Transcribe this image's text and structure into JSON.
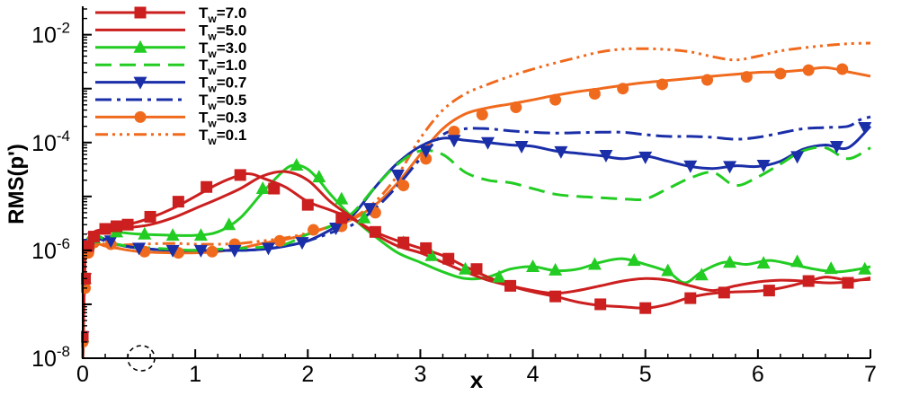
{
  "chart_data": {
    "type": "line",
    "title": "",
    "xlabel": "x",
    "ylabel": "RMS(p')",
    "xlim": [
      0,
      7
    ],
    "ylim": [
      1e-08,
      0.03
    ],
    "yscale": "log",
    "grid": false,
    "legend_position": "top-left",
    "x_ticks": [
      "0",
      "1",
      "2",
      "3",
      "4",
      "5",
      "6",
      "7"
    ],
    "y_ticks": [
      {
        "base": "10",
        "exp": "-8",
        "value": 1e-08
      },
      {
        "base": "10",
        "exp": "-6",
        "value": 1e-06
      },
      {
        "base": "10",
        "exp": "-4",
        "value": 0.0001
      },
      {
        "base": "10",
        "exp": "-2",
        "value": 0.01
      }
    ],
    "series": [
      {
        "name": "Tw=7.0",
        "label_main": "T",
        "label_sub": "w",
        "label_value": "=7.0",
        "color": "#cc1f1f",
        "dash": "",
        "marker": "square",
        "x": [
          0,
          0.01,
          0.02,
          0.03,
          0.05,
          0.08,
          0.12,
          0.2,
          0.3,
          0.45,
          0.6,
          0.8,
          1.0,
          1.2,
          1.4,
          1.5,
          1.6,
          1.8,
          2.0,
          2.2,
          2.4,
          2.6,
          2.8,
          3.0,
          3.2,
          3.4,
          3.6,
          3.8,
          4.0,
          4.2,
          4.4,
          4.6,
          4.8,
          5.0,
          5.2,
          5.4,
          5.6,
          5.8,
          6.0,
          6.2,
          6.4,
          6.6,
          6.8,
          7.0
        ],
        "y": [
          1e-08,
          1e-07,
          6e-07,
          1.3e-06,
          1.6e-06,
          2e-06,
          2.3e-06,
          2.5e-06,
          2.9e-06,
          3.2e-06,
          4e-06,
          6e-06,
          1e-05,
          1.7e-05,
          2.5e-05,
          2.6e-05,
          2.2e-05,
          1.5e-05,
          8e-06,
          5.6e-06,
          3.8e-06,
          2.2e-06,
          1.5e-06,
          1.1e-06,
          8e-07,
          5e-07,
          3.2e-07,
          2.2e-07,
          1.7e-07,
          1.4e-07,
          1.1e-07,
          9.5e-08,
          9e-08,
          8.5e-08,
          1e-07,
          1.35e-07,
          1.6e-07,
          1.7e-07,
          1.75e-07,
          2e-07,
          2.5e-07,
          3.2e-07,
          2.8e-07,
          2.9e-07
        ],
        "marker_x": [
          0,
          0.02,
          0.05,
          0.1,
          0.2,
          0.3,
          0.4,
          0.6,
          0.85,
          1.1,
          1.4,
          1.7,
          2.0,
          2.3,
          2.6,
          2.85,
          3.05,
          3.25,
          3.5,
          3.8,
          4.2,
          4.6,
          5.0,
          5.4,
          5.7,
          6.1,
          6.45,
          6.8
        ],
        "marker_y": [
          2.5e-08,
          3e-07,
          1.2e-06,
          1.8e-06,
          2.5e-06,
          2.8e-06,
          3e-06,
          4.2e-06,
          8e-06,
          1.5e-05,
          2.5e-05,
          1.4e-05,
          7e-06,
          4e-06,
          2.2e-06,
          1.4e-06,
          1.1e-06,
          7e-07,
          4.5e-07,
          2.2e-07,
          1.4e-07,
          1e-07,
          8.5e-08,
          1.3e-07,
          1.65e-07,
          1.8e-07,
          2.7e-07,
          2.5e-07
        ]
      },
      {
        "name": "Tw=5.0",
        "label_main": "T",
        "label_sub": "w",
        "label_value": "=5.0",
        "color": "#cc1f1f",
        "dash": "",
        "marker": "none",
        "x": [
          0,
          0.01,
          0.02,
          0.03,
          0.05,
          0.08,
          0.12,
          0.2,
          0.3,
          0.45,
          0.6,
          0.8,
          1.0,
          1.2,
          1.4,
          1.6,
          1.8,
          2.0,
          2.2,
          2.4,
          2.6,
          2.8,
          3.0,
          3.2,
          3.4,
          3.6,
          3.8,
          4.0,
          4.2,
          4.4,
          4.6,
          4.8,
          5.0,
          5.2,
          5.4,
          5.6,
          5.8,
          6.0,
          6.2,
          6.4,
          6.6,
          6.8,
          7.0
        ],
        "y": [
          1e-08,
          1e-07,
          6e-07,
          1.3e-06,
          1.6e-06,
          2e-06,
          2.2e-06,
          2.4e-06,
          2.5e-06,
          2.7e-06,
          3e-06,
          4e-06,
          6e-06,
          9e-06,
          1.4e-05,
          2.4e-05,
          2.9e-05,
          2e-05,
          8e-06,
          4e-06,
          2e-06,
          1.2e-06,
          9e-07,
          6e-07,
          4e-07,
          2.8e-07,
          2.2e-07,
          1.8e-07,
          1.6e-07,
          1.8e-07,
          2.2e-07,
          2.7e-07,
          3e-07,
          2.8e-07,
          2.2e-07,
          1.8e-07,
          2.2e-07,
          2.6e-07,
          2.8e-07,
          2.7e-07,
          2.5e-07,
          2.6e-07,
          3.1e-07
        ]
      },
      {
        "name": "Tw=3.0",
        "label_main": "T",
        "label_sub": "w",
        "label_value": "=3.0",
        "color": "#22cc22",
        "dash": "",
        "marker": "triangle-up",
        "x": [
          0,
          0.01,
          0.02,
          0.03,
          0.05,
          0.08,
          0.12,
          0.2,
          0.3,
          0.5,
          0.8,
          1.0,
          1.2,
          1.4,
          1.6,
          1.8,
          1.9,
          2.0,
          2.1,
          2.2,
          2.4,
          2.6,
          2.8,
          3.0,
          3.2,
          3.4,
          3.6,
          3.8,
          4.0,
          4.2,
          4.4,
          4.6,
          4.8,
          5.0,
          5.2,
          5.35,
          5.5,
          5.7,
          5.9,
          6.1,
          6.3,
          6.5,
          6.7,
          6.9,
          7.0
        ],
        "y": [
          1e-08,
          1e-07,
          6e-07,
          1.4e-06,
          1.7e-06,
          2e-06,
          2.2e-06,
          2.3e-06,
          2.2e-06,
          2e-06,
          1.9e-06,
          1.9e-06,
          2.2e-06,
          4e-06,
          1.2e-05,
          3.2e-05,
          3.8e-05,
          3.2e-05,
          2e-05,
          1.1e-05,
          4e-06,
          1.8e-06,
          9e-07,
          6e-07,
          4e-07,
          3e-07,
          3.2e-07,
          4.5e-07,
          5e-07,
          4.2e-07,
          4.5e-07,
          6e-07,
          7e-07,
          5.5e-07,
          4e-07,
          2.5e-07,
          4e-07,
          6e-07,
          5.5e-07,
          6.5e-07,
          5.5e-07,
          4.5e-07,
          4e-07,
          4.5e-07,
          5e-07
        ],
        "marker_x": [
          0,
          0.02,
          0.05,
          0.1,
          0.3,
          0.55,
          0.8,
          1.05,
          1.3,
          1.6,
          1.9,
          2.1,
          2.3,
          2.5,
          2.85,
          3.1,
          3.4,
          3.7,
          4.0,
          4.2,
          4.55,
          4.9,
          5.2,
          5.5,
          5.75,
          6.05,
          6.35,
          6.65,
          6.95
        ],
        "marker_y": [
          2.5e-08,
          3e-07,
          1.3e-06,
          1.7e-06,
          2.2e-06,
          2e-06,
          1.9e-06,
          1.9e-06,
          3e-06,
          1.4e-05,
          3.8e-05,
          2.3e-05,
          9e-06,
          4e-06,
          1.4e-06,
          8e-07,
          4.5e-07,
          3.2e-07,
          5e-07,
          4.3e-07,
          5.5e-07,
          6.5e-07,
          4.2e-07,
          3.5e-07,
          6e-07,
          5.8e-07,
          6.2e-07,
          4.6e-07,
          4.5e-07
        ]
      },
      {
        "name": "Tw=1.0",
        "label_main": "T",
        "label_sub": "w",
        "label_value": "=1.0",
        "color": "#22cc22",
        "dash": "18,9",
        "marker": "none",
        "x": [
          0,
          0.01,
          0.02,
          0.03,
          0.05,
          0.08,
          0.12,
          0.2,
          0.3,
          0.5,
          0.8,
          1.0,
          1.2,
          1.4,
          1.6,
          1.8,
          2.0,
          2.2,
          2.4,
          2.6,
          2.8,
          3.0,
          3.2,
          3.4,
          3.6,
          3.8,
          4.0,
          4.2,
          4.4,
          4.6,
          4.8,
          5.0,
          5.2,
          5.4,
          5.6,
          5.8,
          6.0,
          6.2,
          6.4,
          6.6,
          6.8,
          7.0
        ],
        "y": [
          1e-08,
          1e-07,
          6e-07,
          1.3e-06,
          1.7e-06,
          1.9e-06,
          1.9e-06,
          1.6e-06,
          1.3e-06,
          1.15e-06,
          1.05e-06,
          1e-06,
          1.05e-06,
          1.1e-06,
          1.15e-06,
          1.3e-06,
          2e-06,
          2.8e-06,
          5e-06,
          1.5e-05,
          4e-05,
          7e-05,
          6e-05,
          2.8e-05,
          2e-05,
          1.8e-05,
          1.4e-05,
          1.1e-05,
          1e-05,
          9.5e-06,
          9e-06,
          9e-06,
          1.4e-05,
          2.2e-05,
          2.8e-05,
          1.6e-05,
          2.3e-05,
          4e-05,
          7e-05,
          8e-05,
          5e-05,
          8e-05
        ]
      },
      {
        "name": "Tw=0.7",
        "label_main": "T",
        "label_sub": "w",
        "label_value": "=0.7",
        "color": "#1a2ea8",
        "dash": "",
        "marker": "triangle-down",
        "x": [
          0,
          0.01,
          0.02,
          0.03,
          0.05,
          0.08,
          0.12,
          0.2,
          0.3,
          0.5,
          0.8,
          1.0,
          1.2,
          1.4,
          1.6,
          1.8,
          2.0,
          2.2,
          2.4,
          2.6,
          2.8,
          3.0,
          3.2,
          3.4,
          3.6,
          3.8,
          4.0,
          4.2,
          4.4,
          4.6,
          4.8,
          5.0,
          5.2,
          5.4,
          5.6,
          5.8,
          6.0,
          6.2,
          6.4,
          6.6,
          6.8,
          7.0
        ],
        "y": [
          1e-08,
          1e-07,
          6e-07,
          1.3e-06,
          1.7e-06,
          1.9e-06,
          1.9e-06,
          1.6e-06,
          1.3e-06,
          1.1e-06,
          1e-06,
          1e-06,
          1e-06,
          1e-06,
          1.05e-06,
          1.2e-06,
          1.5e-06,
          2.4e-06,
          4.5e-06,
          1.5e-05,
          4.2e-05,
          8.5e-05,
          0.00012,
          0.00011,
          0.0001,
          9e-05,
          8.5e-05,
          7e-05,
          6.3e-05,
          5.7e-05,
          5e-05,
          5.6e-05,
          4.5e-05,
          3.6e-05,
          3.3e-05,
          3.7e-05,
          3.6e-05,
          4.5e-05,
          7.5e-05,
          9e-05,
          8e-05,
          0.0002
        ],
        "marker_x": [
          0,
          0.02,
          0.05,
          0.1,
          0.25,
          0.5,
          0.8,
          1.05,
          1.35,
          1.65,
          1.95,
          2.25,
          2.55,
          2.8,
          3.05,
          3.3,
          3.6,
          3.9,
          4.25,
          4.65,
          5.0,
          5.4,
          5.75,
          6.05,
          6.35,
          6.7,
          6.95
        ],
        "marker_y": [
          2.5e-08,
          3e-07,
          1.3e-06,
          1.7e-06,
          1.5e-06,
          1.1e-06,
          1e-06,
          1e-06,
          1e-06,
          1.1e-06,
          1.4e-06,
          2.6e-06,
          6e-06,
          2.5e-05,
          7e-05,
          0.00011,
          0.0001,
          8.5e-05,
          6.8e-05,
          5.8e-05,
          5.4e-05,
          3.7e-05,
          3.6e-05,
          3.8e-05,
          5.5e-05,
          8.5e-05,
          0.00019
        ]
      },
      {
        "name": "Tw=0.5",
        "label_main": "T",
        "label_sub": "w",
        "label_value": "=0.5",
        "color": "#1a2ea8",
        "dash": "18,6,4,6",
        "marker": "none",
        "x": [
          0,
          0.01,
          0.02,
          0.03,
          0.05,
          0.08,
          0.12,
          0.2,
          0.3,
          0.5,
          0.8,
          1.0,
          1.2,
          1.4,
          1.6,
          1.8,
          2.0,
          2.2,
          2.4,
          2.6,
          2.8,
          3.0,
          3.2,
          3.4,
          3.6,
          3.8,
          4.0,
          4.2,
          4.4,
          4.6,
          4.8,
          5.0,
          5.2,
          5.4,
          5.6,
          5.8,
          6.0,
          6.2,
          6.4,
          6.6,
          6.8,
          6.9,
          7.0
        ],
        "y": [
          1e-08,
          1e-07,
          6e-07,
          1.3e-06,
          1.7e-06,
          1.8e-06,
          1.7e-06,
          1.5e-06,
          1.3e-06,
          1.1e-06,
          1e-06,
          1e-06,
          1e-06,
          1e-06,
          1.05e-06,
          1.2e-06,
          1.5e-06,
          2.1e-06,
          3e-06,
          6e-06,
          1.6e-05,
          5e-05,
          0.00014,
          0.00018,
          0.00018,
          0.000165,
          0.000155,
          0.00015,
          0.000152,
          0.000155,
          0.000155,
          0.00014,
          0.00013,
          0.00013,
          0.000125,
          0.000115,
          0.000125,
          0.00015,
          0.00018,
          0.00019,
          0.0002,
          0.00026,
          0.0003
        ]
      },
      {
        "name": "Tw=0.3",
        "label_main": "T",
        "label_sub": "w",
        "label_value": "=0.3",
        "color": "#f06a1e",
        "dash": "",
        "marker": "circle",
        "x": [
          0,
          0.01,
          0.02,
          0.03,
          0.05,
          0.08,
          0.12,
          0.2,
          0.3,
          0.5,
          0.8,
          1.0,
          1.2,
          1.4,
          1.6,
          1.8,
          2.0,
          2.2,
          2.4,
          2.6,
          2.8,
          3.0,
          3.2,
          3.4,
          3.6,
          3.8,
          4.0,
          4.2,
          4.4,
          4.6,
          4.8,
          5.0,
          5.2,
          5.4,
          5.6,
          5.8,
          6.0,
          6.2,
          6.4,
          6.6,
          6.8,
          7.0
        ],
        "y": [
          1e-08,
          1e-07,
          6e-07,
          1.2e-06,
          1.5e-06,
          1.5e-06,
          1.4e-06,
          1.2e-06,
          1.1e-06,
          9.5e-07,
          9e-07,
          9e-07,
          9.5e-07,
          1.1e-06,
          1.35e-06,
          1.6e-06,
          2e-06,
          2.8e-06,
          3.8e-06,
          7e-06,
          1.8e-05,
          6e-05,
          0.00018,
          0.00034,
          0.00044,
          0.00052,
          0.00062,
          0.00075,
          0.00088,
          0.001,
          0.00115,
          0.0013,
          0.00142,
          0.00155,
          0.0017,
          0.00185,
          0.002,
          0.00205,
          0.0022,
          0.00245,
          0.00205,
          0.0017
        ],
        "marker_x": [
          0,
          0.02,
          0.05,
          0.1,
          0.25,
          0.55,
          0.85,
          1.15,
          1.35,
          1.75,
          2.05,
          2.3,
          2.6,
          2.85,
          3.05,
          3.3,
          3.55,
          3.85,
          4.2,
          4.55,
          4.8,
          5.15,
          5.55,
          5.9,
          6.2,
          6.45,
          6.75
        ],
        "marker_y": [
          2e-08,
          2e-07,
          9e-07,
          1.4e-06,
          1.3e-06,
          9.5e-07,
          9e-07,
          9.5e-07,
          1.3e-06,
          1.5e-06,
          2.4e-06,
          2.8e-06,
          5e-06,
          1.6e-05,
          5e-05,
          0.00016,
          0.00033,
          0.00045,
          0.00062,
          0.0008,
          0.001,
          0.0012,
          0.00145,
          0.00165,
          0.0019,
          0.0022,
          0.0023
        ]
      },
      {
        "name": "Tw=0.1",
        "label_main": "T",
        "label_sub": "w",
        "label_value": "=0.1",
        "color": "#f06a1e",
        "dash": "14,5,3,5,3,5,3,5",
        "marker": "none",
        "x": [
          0,
          0.01,
          0.02,
          0.03,
          0.05,
          0.08,
          0.12,
          0.2,
          0.3,
          0.5,
          0.8,
          1.0,
          1.2,
          1.4,
          1.6,
          1.8,
          2.0,
          2.2,
          2.4,
          2.6,
          2.8,
          3.0,
          3.2,
          3.4,
          3.6,
          3.8,
          4.0,
          4.2,
          4.4,
          4.6,
          4.8,
          5.0,
          5.2,
          5.4,
          5.6,
          5.8,
          6.0,
          6.2,
          6.4,
          6.6,
          6.8,
          7.0
        ],
        "y": [
          1e-08,
          1e-07,
          6e-07,
          1.3e-06,
          1.5e-06,
          1.5e-06,
          1.4e-06,
          1.3e-06,
          1.25e-06,
          1.3e-06,
          1.35e-06,
          1.3e-06,
          1.3e-06,
          1.35e-06,
          1.5e-06,
          1.7e-06,
          2.1e-06,
          2.8e-06,
          4e-06,
          8e-06,
          2.5e-05,
          0.00012,
          0.0004,
          0.0008,
          0.0012,
          0.0017,
          0.0023,
          0.003,
          0.0038,
          0.0048,
          0.0054,
          0.0055,
          0.0053,
          0.0048,
          0.0039,
          0.0034,
          0.004,
          0.005,
          0.0057,
          0.0063,
          0.0068,
          0.007
        ]
      }
    ]
  }
}
